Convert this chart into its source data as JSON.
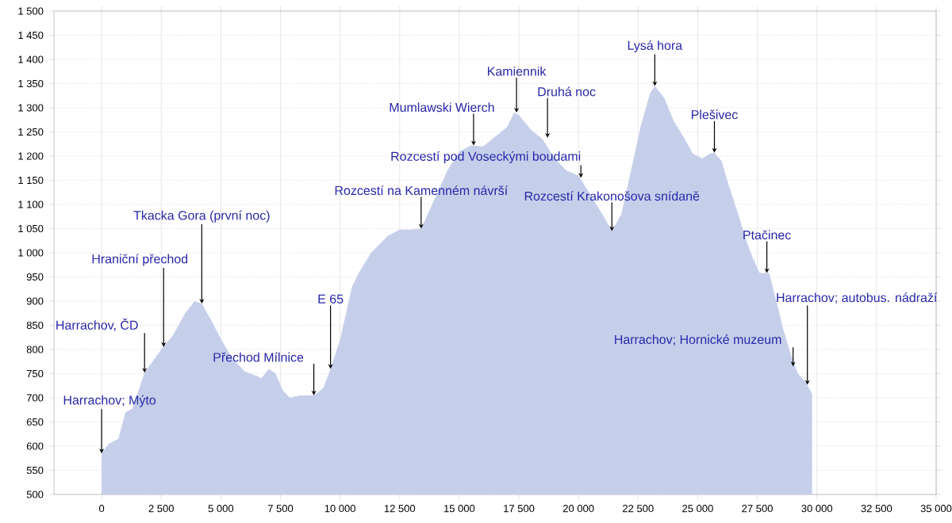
{
  "chart_data": {
    "type": "area",
    "color": "#c6cfea",
    "x": [
      0,
      300,
      700,
      1000,
      1300,
      1800,
      2500,
      3000,
      3500,
      3900,
      4200,
      4600,
      5000,
      5500,
      6000,
      6500,
      6700,
      7000,
      7300,
      7600,
      7900,
      8300,
      8900,
      9300,
      9600,
      10000,
      10500,
      10800,
      11300,
      12000,
      12500,
      13000,
      13400,
      14000,
      14500,
      15000,
      15500,
      16000,
      16500,
      17000,
      17300,
      17500,
      18000,
      18500,
      19000,
      19500,
      20000,
      20500,
      21000,
      21400,
      21800,
      22200,
      22600,
      23000,
      23200,
      23600,
      24000,
      24400,
      24800,
      25200,
      25500,
      25700,
      26000,
      26300,
      26700,
      27000,
      27300,
      27600,
      28000,
      28300,
      28600,
      28900,
      29200,
      29500,
      29800
    ],
    "values": [
      585,
      605,
      615,
      670,
      678,
      752,
      800,
      830,
      875,
      900,
      895,
      860,
      822,
      780,
      755,
      745,
      740,
      760,
      750,
      715,
      700,
      705,
      705,
      720,
      760,
      820,
      930,
      960,
      1000,
      1035,
      1048,
      1048,
      1050,
      1115,
      1170,
      1210,
      1222,
      1220,
      1240,
      1260,
      1290,
      1285,
      1255,
      1235,
      1195,
      1170,
      1160,
      1120,
      1080,
      1045,
      1080,
      1170,
      1260,
      1330,
      1345,
      1320,
      1272,
      1240,
      1205,
      1195,
      1205,
      1207,
      1190,
      1140,
      1080,
      1030,
      990,
      958,
      958,
      900,
      840,
      790,
      750,
      735,
      708
    ],
    "xlim": [
      -2000,
      35000
    ],
    "xticks": [
      0,
      {
        "value": 2500,
        "label": "2 500"
      },
      {
        "value": 5000,
        "label": "5 000"
      },
      {
        "value": 7500,
        "label": "7 500"
      },
      {
        "value": 10000,
        "label": "10 000"
      },
      {
        "value": 12500,
        "label": "12 500"
      },
      {
        "value": 15000,
        "label": "15 000"
      },
      {
        "value": 17500,
        "label": "17 500"
      },
      {
        "value": 20000,
        "label": "20 000"
      },
      {
        "value": 22500,
        "label": "22 500"
      },
      {
        "value": 25000,
        "label": "25 000"
      },
      {
        "value": 27500,
        "label": "27 500"
      },
      {
        "value": 30000,
        "label": "30 000"
      },
      {
        "value": 32500,
        "label": "32 500"
      },
      {
        "value": 35000,
        "label": "35 000"
      }
    ],
    "ylim": [
      500,
      1500
    ],
    "yticks": [
      500,
      550,
      600,
      650,
      700,
      750,
      800,
      850,
      900,
      950,
      {
        "value": 1000,
        "label": "1 000"
      },
      {
        "value": 1050,
        "label": "1 050"
      },
      {
        "value": 1100,
        "label": "1 100"
      },
      {
        "value": 1150,
        "label": "1 150"
      },
      {
        "value": 1200,
        "label": "1 200"
      },
      {
        "value": 1250,
        "label": "1 250"
      },
      {
        "value": 1300,
        "label": "1 300"
      },
      {
        "value": 1350,
        "label": "1 350"
      },
      {
        "value": 1400,
        "label": "1 400"
      },
      {
        "value": 1450,
        "label": "1 450"
      },
      {
        "value": 1500,
        "label": "1 500"
      }
    ],
    "grid": true,
    "annotations": [
      {
        "text": "Harrachov; Mýto",
        "x": 0,
        "y": 585
      },
      {
        "text": "Harrachov, ČD",
        "x": 1800,
        "y": 752
      },
      {
        "text": "Hraniční přechod",
        "x": 2600,
        "y": 805
      },
      {
        "text": "Tkacka Gora (první noc)",
        "x": 4200,
        "y": 895
      },
      {
        "text": "Přechod Mílnice",
        "x": 8900,
        "y": 705
      },
      {
        "text": "E 65",
        "x": 9600,
        "y": 760
      },
      {
        "text": "Rozcestí na Kamenném návrší",
        "x": 13400,
        "y": 1050
      },
      {
        "text": "Mumlawski Wierch",
        "x": 15600,
        "y": 1222
      },
      {
        "text": "Kamiennik",
        "x": 17400,
        "y": 1290
      },
      {
        "text": "Druhá noc",
        "x": 18700,
        "y": 1238
      },
      {
        "text": "Rozcestí pod Voseckými boudami",
        "x": 20100,
        "y": 1155
      },
      {
        "text": "Rozcestí Krakonošova snídaně",
        "x": 21400,
        "y": 1045
      },
      {
        "text": "Lysá hora",
        "x": 23200,
        "y": 1345
      },
      {
        "text": "Plešivec",
        "x": 25700,
        "y": 1207
      },
      {
        "text": "Ptačinec",
        "x": 27900,
        "y": 958
      },
      {
        "text": "Harrachov; Hornické muzeum",
        "x": 29000,
        "y": 765
      },
      {
        "text": "Harrachov; autobus. nádraží",
        "x": 29600,
        "y": 727
      }
    ]
  }
}
